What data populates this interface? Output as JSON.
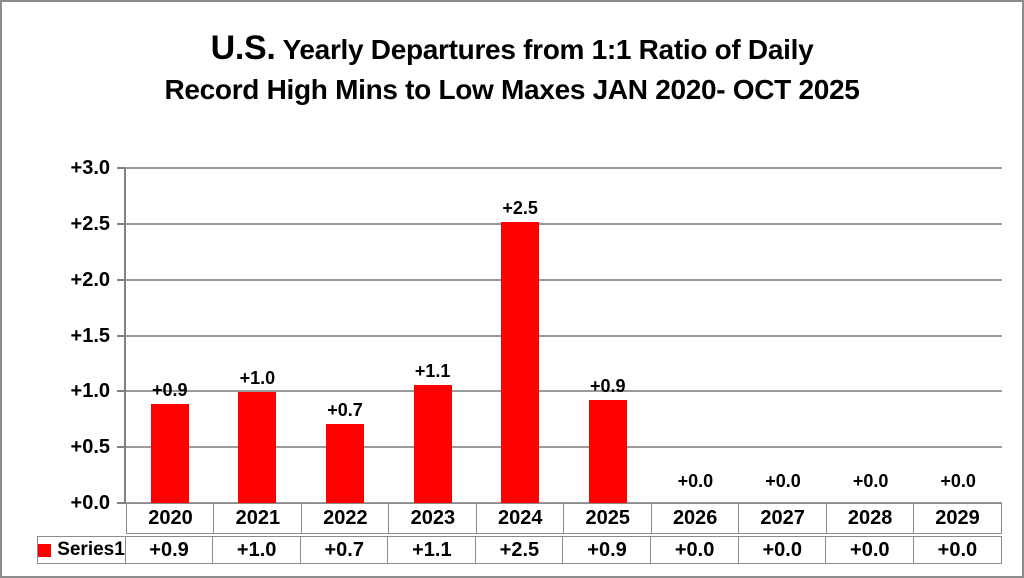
{
  "title": {
    "us_prefix": "U.S.",
    "line1_rest": " Yearly Departures from 1:1 Ratio of Daily",
    "line2": "Record High Mins to Low Maxes JAN 2020- OCT 2025"
  },
  "chart_data": {
    "type": "bar",
    "categories": [
      "2020",
      "2021",
      "2022",
      "2023",
      "2024",
      "2025",
      "2026",
      "2027",
      "2028",
      "2029"
    ],
    "series": [
      {
        "name": "Series1",
        "values": [
          0.9,
          1.0,
          0.7,
          1.1,
          2.5,
          0.9,
          0.0,
          0.0,
          0.0,
          0.0
        ],
        "bar_heights_estimate": [
          0.89,
          0.99,
          0.71,
          1.06,
          2.52,
          0.92,
          0,
          0,
          0,
          0
        ],
        "data_labels": [
          "+0.9",
          "+1.0",
          "+0.7",
          "+1.1",
          "+2.5",
          "+0.9",
          "+0.0",
          "+0.0",
          "+0.0",
          "+0.0"
        ],
        "color": "#ff0000"
      }
    ],
    "y_axis": {
      "tick_labels": [
        "+3.0",
        "+2.5",
        "+2.0",
        "+1.5",
        "+1.0",
        "+0.5",
        "+0.0"
      ],
      "range": [
        0,
        3
      ],
      "grid": true
    },
    "table_values": [
      "+0.9",
      "+1.0",
      "+0.7",
      "+1.1",
      "+2.5",
      "+0.9",
      "+0.0",
      "+0.0",
      "+0.0",
      "+0.0"
    ],
    "legend": {
      "label": "Series1",
      "position": "bottom-left"
    },
    "colors": {
      "bar": "#ff0000",
      "gridline": "#9a9a9a",
      "axis": "#808080",
      "table_border": "#8c8c8c",
      "text": "#000000",
      "background": "#ffffff"
    }
  }
}
